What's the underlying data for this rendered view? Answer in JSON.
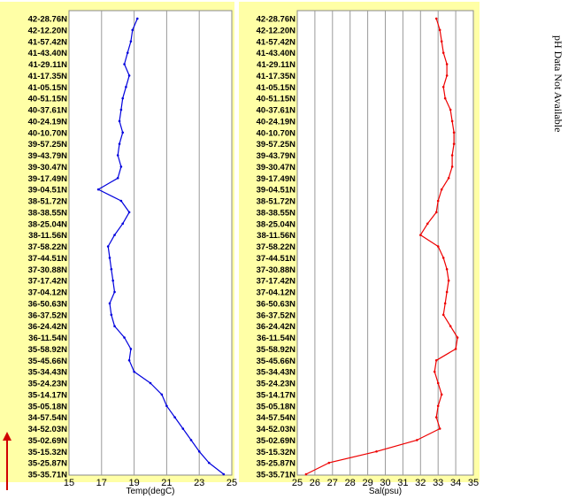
{
  "side_note": "pH Data Not Available",
  "chart_data": [
    {
      "type": "line",
      "xlabel": "Temp(degC)",
      "ylabel": "",
      "xlim": [
        15,
        25
      ],
      "xticks": [
        "15",
        "17",
        "19",
        "21",
        "23",
        "25"
      ],
      "ytick_labels": [
        "42-28.76N",
        "42-12.20N",
        "41-57.42N",
        "41-43.40N",
        "41-29.11N",
        "41-17.35N",
        "41-05.15N",
        "40-51.15N",
        "40-37.61N",
        "40-24.19N",
        "40-10.70N",
        "39-57.25N",
        "39-43.79N",
        "39-30.47N",
        "39-17.49N",
        "39-04.51N",
        "38-51.72N",
        "38-38.55N",
        "38-25.04N",
        "38-11.56N",
        "37-58.22N",
        "37-44.51N",
        "37-30.88N",
        "37-17.42N",
        "37-04.12N",
        "36-50.63N",
        "36-37.52N",
        "36-24.42N",
        "36-11.54N",
        "35-58.92N",
        "35-45.66N",
        "35-34.43N",
        "35-24.23N",
        "35-14.17N",
        "35-05.18N",
        "34-57.54N",
        "34-52.03N",
        "35-02.69N",
        "35-15.32N",
        "35-25.87N",
        "35-35.71N"
      ],
      "series": [
        {
          "color": "#0000dd",
          "values": [
            19.2,
            18.9,
            18.8,
            18.6,
            18.4,
            18.7,
            18.5,
            18.3,
            18.2,
            18.1,
            18.3,
            18.1,
            18.0,
            18.2,
            18.0,
            16.8,
            18.2,
            18.7,
            18.3,
            17.8,
            17.4,
            17.5,
            17.6,
            17.7,
            17.8,
            17.5,
            17.6,
            17.8,
            18.4,
            18.8,
            18.7,
            19.0,
            20.0,
            20.7,
            21.0,
            21.5,
            22.0,
            22.5,
            23.0,
            23.6,
            24.5
          ]
        }
      ]
    },
    {
      "type": "line",
      "xlabel": "Sal(psu)",
      "ylabel": "",
      "xlim": [
        25,
        35
      ],
      "xticks": [
        "25",
        "26",
        "27",
        "28",
        "29",
        "30",
        "31",
        "32",
        "33",
        "34",
        "35"
      ],
      "ytick_labels": [
        "42-28.76N",
        "42-12.20N",
        "41-57.42N",
        "41-43.40N",
        "41-29.11N",
        "41-17.35N",
        "41-05.15N",
        "40-51.15N",
        "40-37.61N",
        "40-24.19N",
        "40-10.70N",
        "39-57.25N",
        "39-43.79N",
        "39-30.47N",
        "39-17.49N",
        "39-04.51N",
        "38-51.72N",
        "38-38.55N",
        "38-25.04N",
        "38-11.56N",
        "37-58.22N",
        "37-44.51N",
        "37-30.88N",
        "37-17.42N",
        "37-04.12N",
        "36-50.63N",
        "36-37.52N",
        "36-24.42N",
        "36-11.54N",
        "35-58.92N",
        "35-45.66N",
        "35-34.43N",
        "35-24.23N",
        "35-14.17N",
        "35-05.18N",
        "34-57.54N",
        "34-52.03N",
        "35-02.69N",
        "35-15.32N",
        "35-25.87N",
        "35-35.71N"
      ],
      "series": [
        {
          "color": "#ee0000",
          "values": [
            32.9,
            33.1,
            33.2,
            33.3,
            33.5,
            33.5,
            33.3,
            33.4,
            33.7,
            33.8,
            33.9,
            33.9,
            33.8,
            33.8,
            33.6,
            33.2,
            33.0,
            32.9,
            32.4,
            32.0,
            33.0,
            33.3,
            33.5,
            33.6,
            33.5,
            33.4,
            33.3,
            33.7,
            34.1,
            34.0,
            32.9,
            32.8,
            33.0,
            33.2,
            33.0,
            32.9,
            33.1,
            31.8,
            29.5,
            26.8,
            25.5
          ]
        }
      ]
    }
  ]
}
